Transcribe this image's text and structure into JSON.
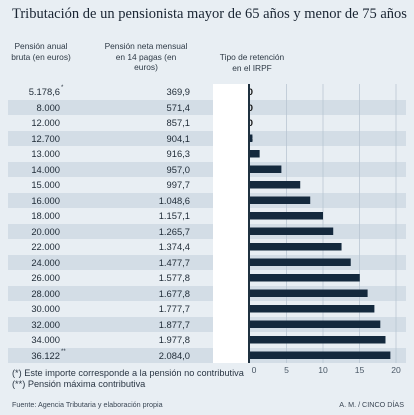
{
  "title": "Tributación de un pensionista mayor de 65 años y menor de 75 años",
  "col_headers": {
    "gross": "Pensión anual bruta (en euros)",
    "net": "Pensión neta mensual en 14 pagas (en euros)",
    "rate": "Tipo de retención en el IRPF"
  },
  "rows": [
    {
      "gross": "5.178,6",
      "mark": "*",
      "net": "369,9",
      "rate": "0,00"
    },
    {
      "gross": "8.000",
      "mark": "",
      "net": "571,4",
      "rate": "0,00"
    },
    {
      "gross": "12.000",
      "mark": "",
      "net": "857,1",
      "rate": "0,00"
    },
    {
      "gross": "12.700",
      "mark": "",
      "net": "904,1",
      "rate": "0,33"
    },
    {
      "gross": "13.000",
      "mark": "",
      "net": "916,3",
      "rate": "1,32"
    },
    {
      "gross": "14.000",
      "mark": "",
      "net": "957,0",
      "rate": "4,30"
    },
    {
      "gross": "15.000",
      "mark": "",
      "net": "997,7",
      "rate": "6,88"
    },
    {
      "gross": "16.000",
      "mark": "",
      "net": "1.048,6",
      "rate": "8,25"
    },
    {
      "gross": "18.000",
      "mark": "",
      "net": "1.157,1",
      "rate": "10,00"
    },
    {
      "gross": "20.000",
      "mark": "",
      "net": "1.265,7",
      "rate": "11,40"
    },
    {
      "gross": "22.000",
      "mark": "",
      "net": "1.374,4",
      "rate": "12,54"
    },
    {
      "gross": "24.000",
      "mark": "",
      "net": "1.477,7",
      "rate": "13,80"
    },
    {
      "gross": "26.000",
      "mark": "",
      "net": "1.577,8",
      "rate": "15,04"
    },
    {
      "gross": "28.000",
      "mark": "",
      "net": "1.677,8",
      "rate": "16,11"
    },
    {
      "gross": "30.000",
      "mark": "",
      "net": "1.777,7",
      "rate": "17,04"
    },
    {
      "gross": "32.000",
      "mark": "",
      "net": "1.877,7",
      "rate": "17,85"
    },
    {
      "gross": "34.000",
      "mark": "",
      "net": "1.977,8",
      "rate": "18,56"
    },
    {
      "gross": "36.122",
      "mark": "**",
      "net": "2.084,0",
      "rate": "19,23"
    }
  ],
  "chart_data": {
    "type": "bar",
    "orientation": "horizontal",
    "categories": [
      "5.178,6",
      "8.000",
      "12.000",
      "12.700",
      "13.000",
      "14.000",
      "15.000",
      "16.000",
      "18.000",
      "20.000",
      "22.000",
      "24.000",
      "26.000",
      "28.000",
      "30.000",
      "32.000",
      "34.000",
      "36.122"
    ],
    "values": [
      0,
      0,
      0,
      0.33,
      1.32,
      4.3,
      6.88,
      8.25,
      10.0,
      11.4,
      12.54,
      13.8,
      15.04,
      16.11,
      17.04,
      17.85,
      18.56,
      19.23
    ],
    "xlim": [
      0,
      20
    ],
    "xticks": [
      "0",
      "5",
      "10",
      "15",
      "20"
    ],
    "bar_color": "#14293d",
    "grid": true
  },
  "footnotes": [
    "(*) Este importe corresponde a la pensión no contributiva",
    "(**) Pensión máxima contributiva"
  ],
  "source": "Fuente: Agencia Tributaria y elaboración propia",
  "credit": "A. M. / CINCO DÍAS",
  "colors": {
    "background": "#e8eef3",
    "stripe": "#d3dde6",
    "bar": "#14293d"
  }
}
